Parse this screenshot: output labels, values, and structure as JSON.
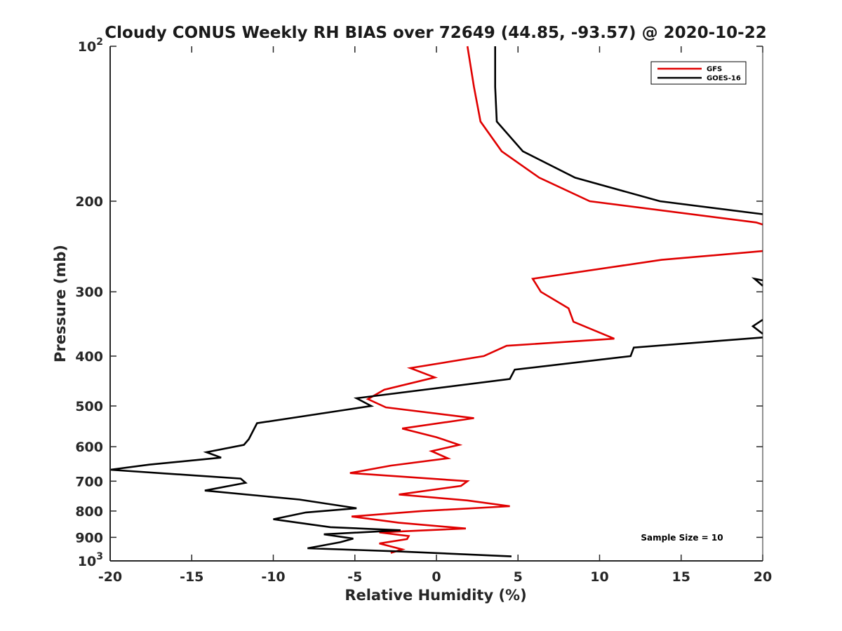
{
  "chart_data": {
    "type": "line",
    "title": "Cloudy CONUS Weekly RH BIAS over 72649 (44.85, -93.57) @ 2020-10-22",
    "xlabel": "Relative Humidity (%)",
    "ylabel": "Pressure (mb)",
    "xlim": [
      -20,
      20
    ],
    "ylim": [
      100,
      1000
    ],
    "y_scale": "log",
    "y_reversed": true,
    "grid": false,
    "x_ticks": [
      {
        "value": -20,
        "label": "-20"
      },
      {
        "value": -15,
        "label": "-15"
      },
      {
        "value": -10,
        "label": "-10"
      },
      {
        "value": -5,
        "label": "-5"
      },
      {
        "value": 0,
        "label": "0"
      },
      {
        "value": 5,
        "label": "5"
      },
      {
        "value": 10,
        "label": "10"
      },
      {
        "value": 15,
        "label": "15"
      },
      {
        "value": 20,
        "label": "20"
      }
    ],
    "y_ticks": [
      {
        "value": 100,
        "base": "10",
        "exp": "2"
      },
      {
        "value": 200,
        "base": "200",
        "exp": ""
      },
      {
        "value": 300,
        "base": "300",
        "exp": ""
      },
      {
        "value": 400,
        "base": "400",
        "exp": ""
      },
      {
        "value": 500,
        "base": "500",
        "exp": ""
      },
      {
        "value": 600,
        "base": "600",
        "exp": ""
      },
      {
        "value": 700,
        "base": "700",
        "exp": ""
      },
      {
        "value": 800,
        "base": "800",
        "exp": ""
      },
      {
        "value": 900,
        "base": "900",
        "exp": ""
      },
      {
        "value": 1000,
        "base": "10",
        "exp": "3"
      }
    ],
    "legend_position": "top-right",
    "annotation": "Sample Size = 10",
    "series": [
      {
        "name": "GFS",
        "color": "#e00000",
        "points": [
          [
            1.9,
            100
          ],
          [
            2.3,
            120
          ],
          [
            2.7,
            140
          ],
          [
            4.0,
            160
          ],
          [
            6.3,
            180
          ],
          [
            9.4,
            200
          ],
          [
            19.6,
            220
          ],
          [
            20,
            222
          ],
          [
            null,
            null
          ],
          [
            20,
            250
          ],
          [
            13.8,
            260
          ],
          [
            5.9,
            283
          ],
          [
            6.4,
            300
          ],
          [
            8.1,
            323
          ],
          [
            8.4,
            343
          ],
          [
            10.9,
            370
          ],
          [
            4.3,
            382
          ],
          [
            2.9,
            400
          ],
          [
            -1.6,
            422
          ],
          [
            -0.1,
            440
          ],
          [
            -3.2,
            465
          ],
          [
            -4.2,
            485
          ],
          [
            -3.1,
            503
          ],
          [
            2.3,
            528
          ],
          [
            -2.1,
            553
          ],
          [
            0.0,
            575
          ],
          [
            1.4,
            595
          ],
          [
            -0.3,
            612
          ],
          [
            0.7,
            632
          ],
          [
            -2.8,
            653
          ],
          [
            -5.3,
            675
          ],
          [
            1.9,
            700
          ],
          [
            1.5,
            715
          ],
          [
            -2.3,
            743
          ],
          [
            1.9,
            763
          ],
          [
            4.5,
            783
          ],
          [
            -0.9,
            800
          ],
          [
            -5.2,
            820
          ],
          [
            -2.3,
            843
          ],
          [
            1.8,
            865
          ],
          [
            -3.5,
            880
          ],
          [
            -1.7,
            895
          ],
          [
            -1.8,
            907
          ],
          [
            -3.5,
            925
          ],
          [
            -2.1,
            950
          ],
          [
            -2.8,
            965
          ]
        ]
      },
      {
        "name": "GOES-16",
        "color": "#000000",
        "points": [
          [
            3.6,
            100
          ],
          [
            3.6,
            120
          ],
          [
            3.7,
            140
          ],
          [
            5.3,
            160
          ],
          [
            8.5,
            180
          ],
          [
            13.7,
            200
          ],
          [
            20,
            212
          ],
          [
            null,
            null
          ],
          [
            20,
            285
          ],
          [
            19.5,
            283
          ],
          [
            20,
            292
          ],
          [
            null,
            null
          ],
          [
            20,
            340
          ],
          [
            19.4,
            350
          ],
          [
            20,
            362
          ],
          [
            null,
            null
          ],
          [
            20,
            368
          ],
          [
            12.1,
            385
          ],
          [
            11.9,
            400
          ],
          [
            4.8,
            425
          ],
          [
            4.5,
            443
          ],
          [
            -4.9,
            483
          ],
          [
            -4.0,
            500
          ],
          [
            -5.8,
            510
          ],
          [
            -11.0,
            540
          ],
          [
            -11.5,
            580
          ],
          [
            -11.8,
            595
          ],
          [
            -14.1,
            615
          ],
          [
            -13.2,
            630
          ],
          [
            -17.6,
            650
          ],
          [
            -20,
            665
          ],
          [
            -12.0,
            692
          ],
          [
            -11.7,
            705
          ],
          [
            -14.2,
            730
          ],
          [
            -8.4,
            760
          ],
          [
            -4.9,
            790
          ],
          [
            -8.0,
            805
          ],
          [
            -10.0,
            830
          ],
          [
            -6.5,
            860
          ],
          [
            -2.2,
            872
          ],
          [
            -6.9,
            888
          ],
          [
            -5.1,
            905
          ],
          [
            -5.9,
            920
          ],
          [
            -7.9,
            945
          ],
          [
            -2.5,
            958
          ],
          [
            4.6,
            980
          ]
        ]
      }
    ]
  }
}
